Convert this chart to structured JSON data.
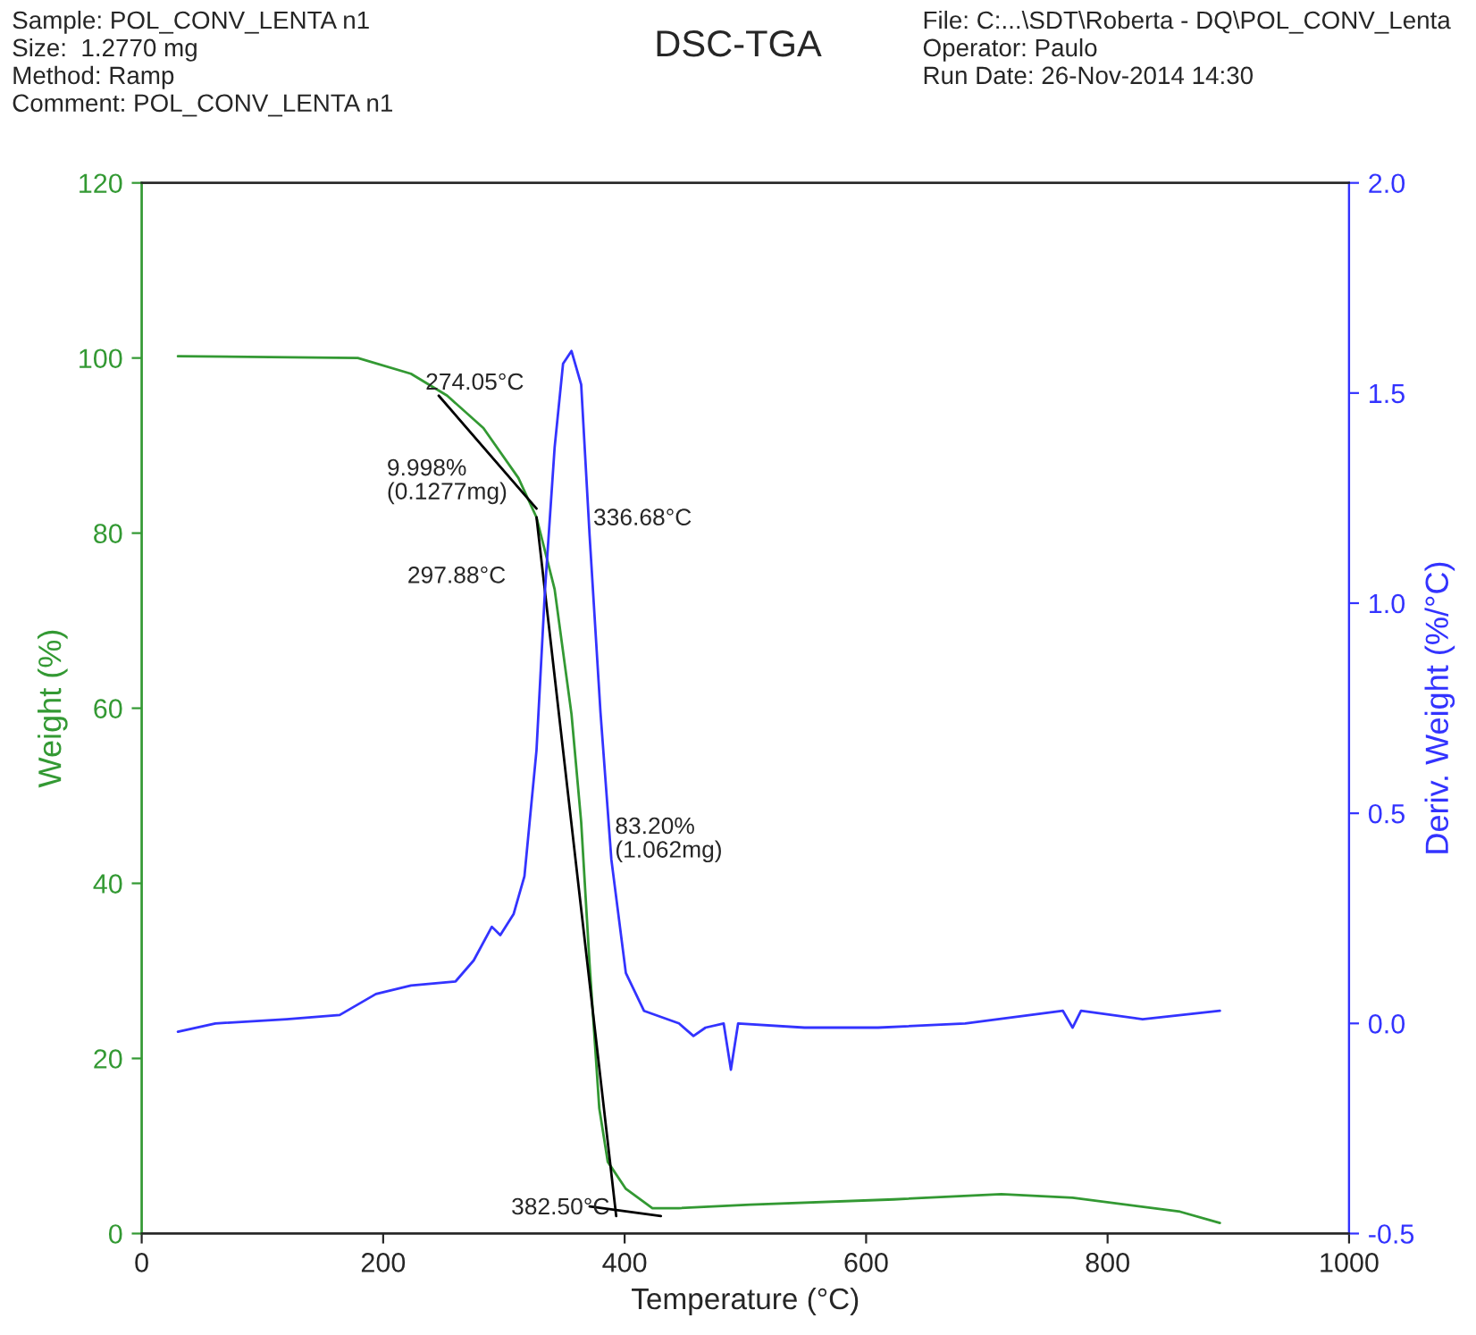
{
  "chart_data": {
    "type": "line",
    "title": "DSC-TGA",
    "xlabel": "Temperature (°C)",
    "ylabel": "Weight (%)",
    "y2label": "Deriv. Weight (%/°C)",
    "xlim": [
      0,
      1000
    ],
    "xticks": [
      0,
      200,
      400,
      600,
      800,
      1000
    ],
    "ylim": [
      0,
      120
    ],
    "yticks": [
      0,
      20,
      40,
      60,
      80,
      100,
      120
    ],
    "y2lim": [
      -0.5,
      2.0
    ],
    "y2ticks": [
      {
        "value": -0.5,
        "label": "-0.5"
      },
      {
        "value": 0.0,
        "label": "0.0"
      },
      {
        "value": 0.5,
        "label": "0.5"
      },
      {
        "value": 1.0,
        "label": "1.0"
      },
      {
        "value": 1.5,
        "label": "1.5"
      },
      {
        "value": 2.0,
        "label": "2.0"
      }
    ],
    "grid": false,
    "legend": false,
    "series": [
      {
        "color": "#339933",
        "x": [
          30,
          179,
          223,
          253,
          283,
          312,
          327,
          342,
          356,
          364,
          371,
          379,
          386,
          401,
          423,
          445,
          504,
          623,
          712,
          771,
          860,
          893
        ],
        "values": [
          100.2,
          100.0,
          98.2,
          95.7,
          92.0,
          86.3,
          81.8,
          73.6,
          59.3,
          47.0,
          30.7,
          14.3,
          8.2,
          5.1,
          2.9,
          2.9,
          3.3,
          3.9,
          4.5,
          4.1,
          2.5,
          1.2
        ]
      },
      {
        "color": "#3333ff",
        "axis": "y2",
        "x": [
          30,
          61,
          120,
          164,
          194,
          223,
          260,
          275,
          290,
          297,
          308,
          317,
          327,
          334,
          342,
          349,
          356,
          364,
          371,
          380,
          389,
          401,
          416,
          445,
          457,
          467,
          482,
          488,
          494,
          549,
          610,
          682,
          763,
          771,
          778,
          829,
          893
        ],
        "values": [
          -0.02,
          0.0,
          0.01,
          0.02,
          0.07,
          0.09,
          0.1,
          0.15,
          0.23,
          0.21,
          0.26,
          0.35,
          0.65,
          1.03,
          1.37,
          1.57,
          1.6,
          1.52,
          1.16,
          0.74,
          0.39,
          0.12,
          0.03,
          0.0,
          -0.03,
          -0.01,
          0.0,
          -0.11,
          0.0,
          -0.01,
          -0.01,
          0.0,
          0.03,
          -0.01,
          0.03,
          0.01,
          0.03
        ]
      },
      {
        "color": "#000000",
        "x": [
          246,
          327
        ],
        "values": [
          95.7,
          82.8
        ]
      },
      {
        "color": "#000000",
        "x": [
          327,
          393
        ],
        "values": [
          81.8,
          2.0
        ]
      },
      {
        "color": "#000000",
        "x": [
          371,
          430
        ],
        "values": [
          3.1,
          2.0
        ]
      }
    ],
    "annotations": [
      "Sample: POL_CONV_LENTA n1\nSize:  1.2770 mg\nMethod: Ramp\nComment: POL_CONV_LENTA n1",
      "File: C:...\\SDT\\Roberta - DQ\\POL_CONV_Lenta\nOperator: Paulo\nRun Date: 26-Nov-2014 14:30",
      "274.05°C",
      "9.998%\n(0.1277mg)",
      "297.88°C",
      "336.68°C",
      "83.20%\n(1.062mg)",
      "382.50°C"
    ]
  }
}
